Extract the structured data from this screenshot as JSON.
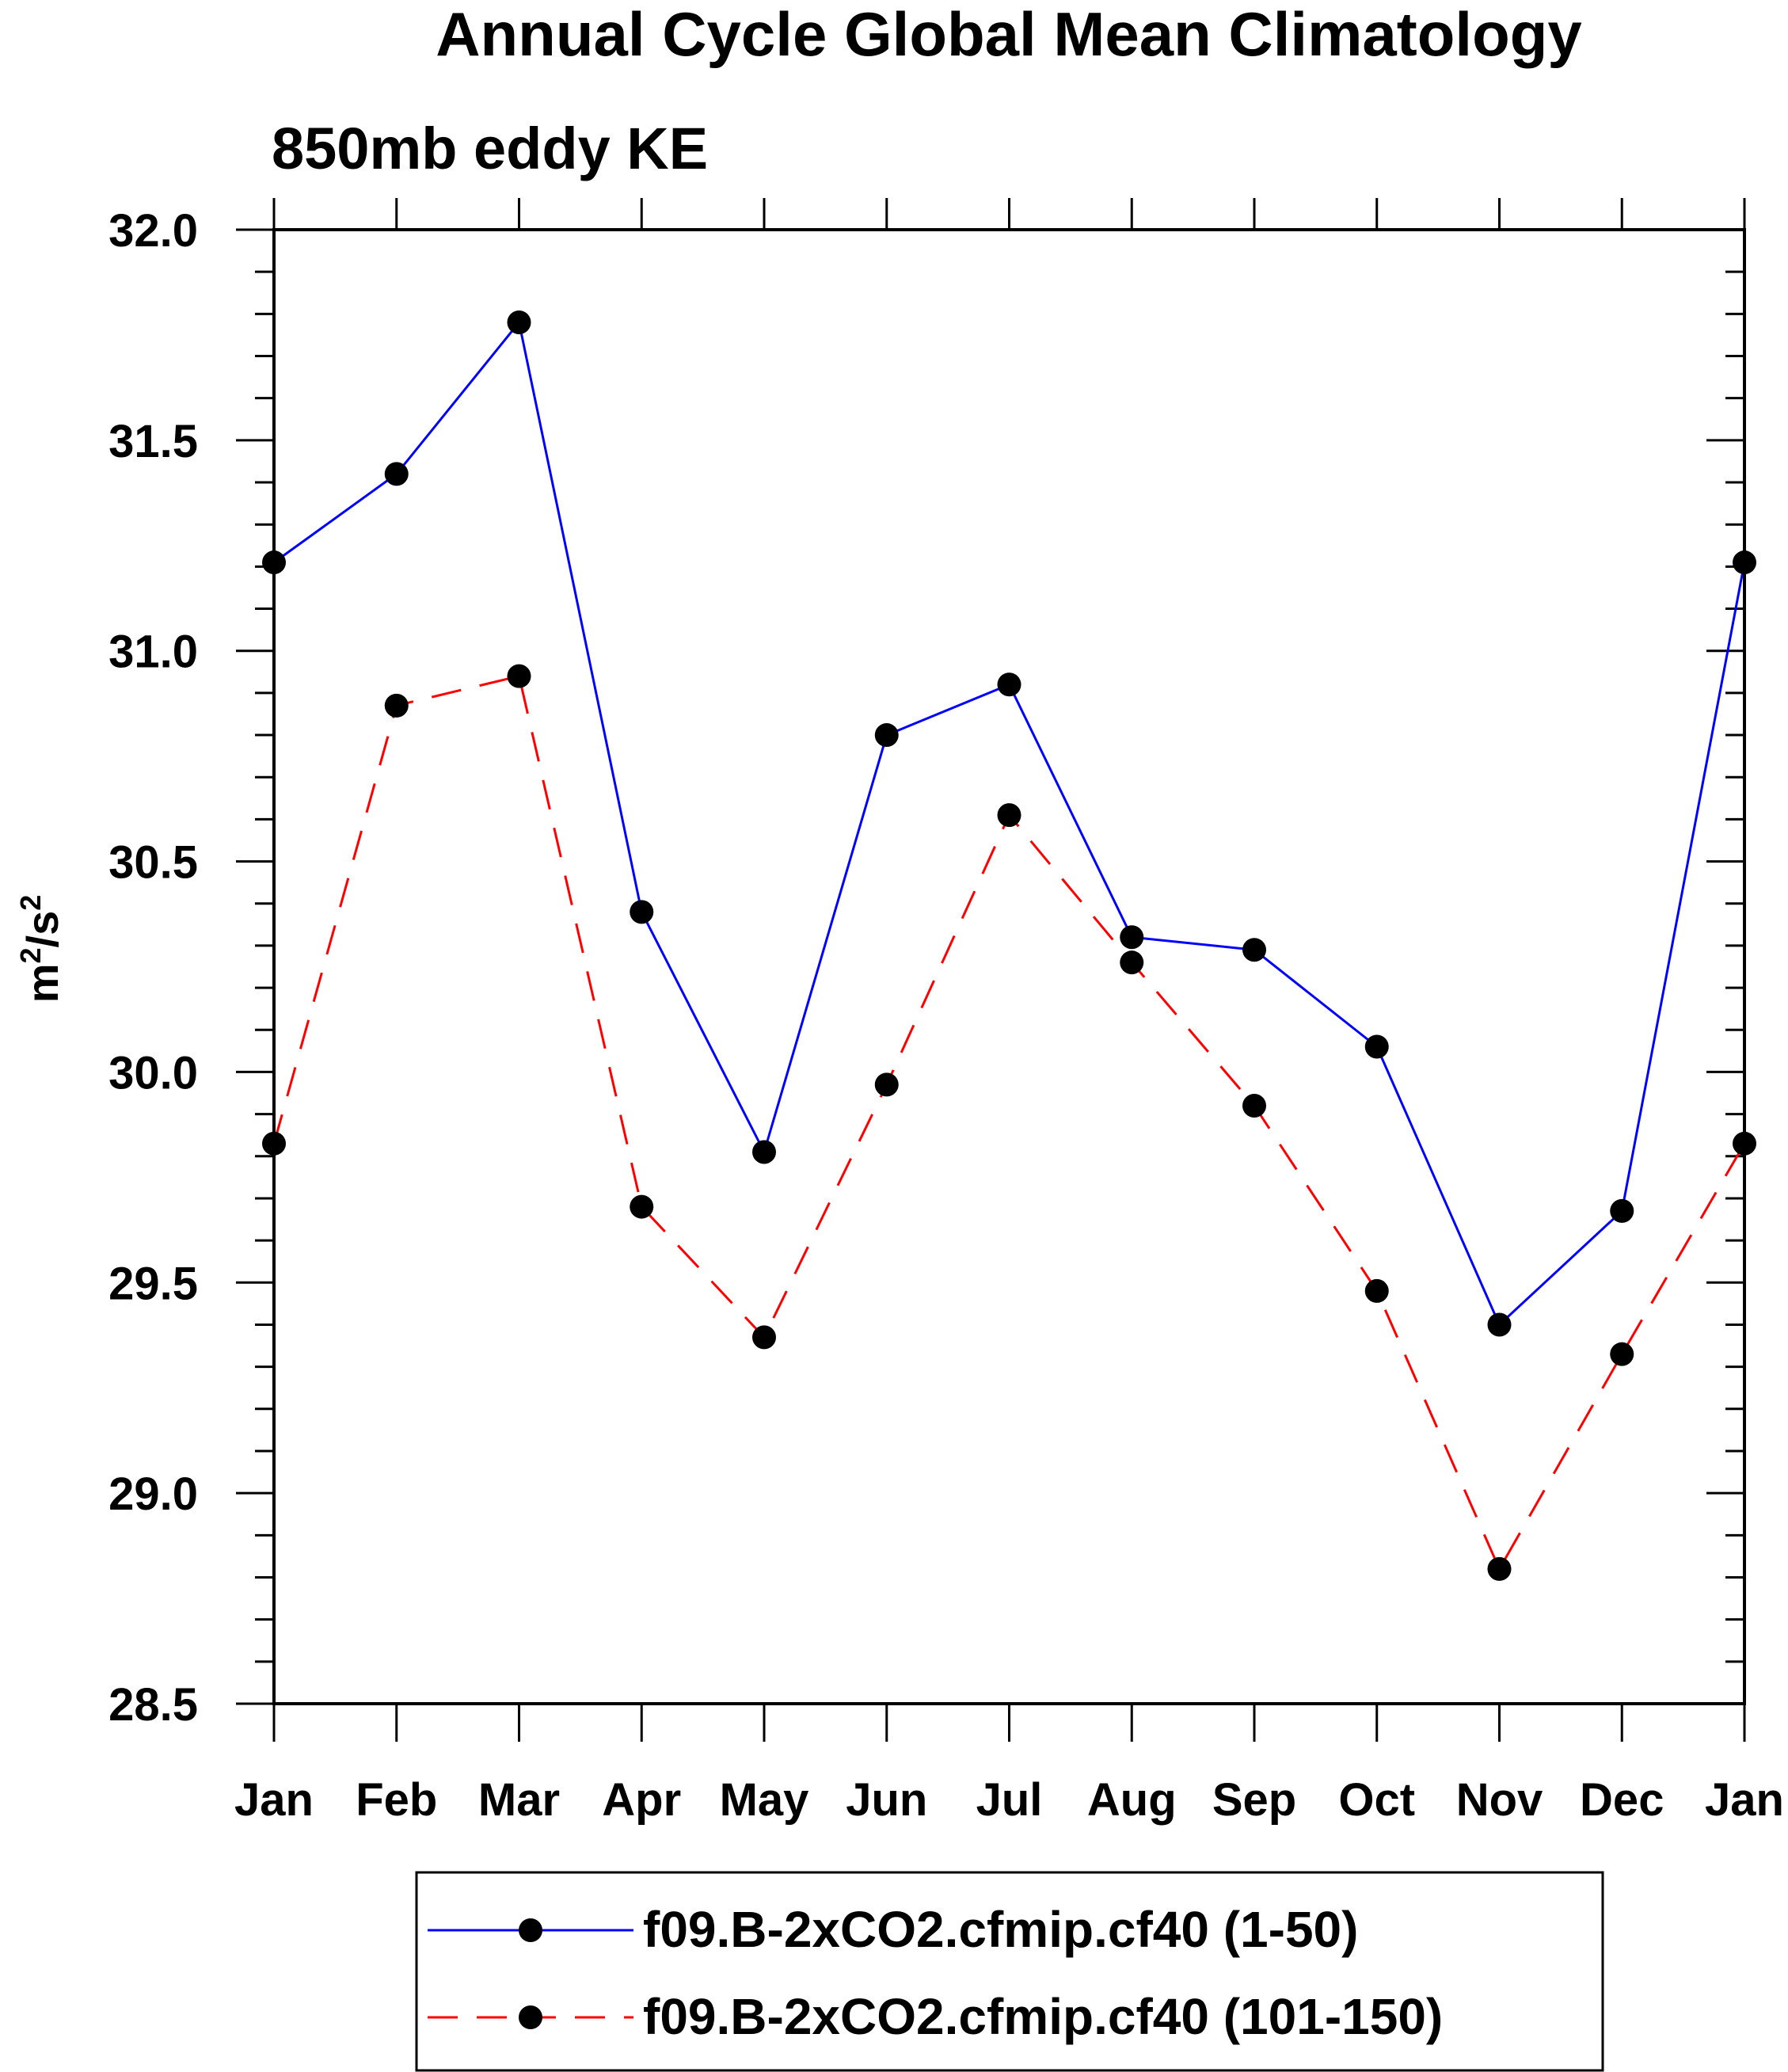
{
  "chart_data": {
    "type": "line",
    "title": "Annual Cycle Global Mean Climatology",
    "subtitle": "850mb eddy KE",
    "xlabel": "",
    "ylabel": "m²/s²",
    "ylabel_base": "m",
    "ylabel_exp": "2",
    "ylabel_sep": "/s",
    "ylabel_exp2": "2",
    "categories": [
      "Jan",
      "Feb",
      "Mar",
      "Apr",
      "May",
      "Jun",
      "Jul",
      "Aug",
      "Sep",
      "Oct",
      "Nov",
      "Dec",
      "Jan"
    ],
    "ylim": [
      28.5,
      32.0
    ],
    "yticks": [
      "28.5",
      "29.0",
      "29.5",
      "30.0",
      "30.5",
      "31.0",
      "31.5",
      "32.0"
    ],
    "grid": false,
    "legend_position": "bottom",
    "series": [
      {
        "name": "f09.B-2xCO2.cfmip.cf40 (1-50)",
        "color": "#0000ff",
        "dash": "solid",
        "marker": "filled-circle",
        "values": [
          31.21,
          31.42,
          31.78,
          30.38,
          29.81,
          30.8,
          30.92,
          30.32,
          30.29,
          30.06,
          29.4,
          29.67,
          31.21
        ]
      },
      {
        "name": "f09.B-2xCO2.cfmip.cf40 (101-150)",
        "color": "#ff0000",
        "dash": "dashed",
        "marker": "filled-circle",
        "values": [
          29.83,
          30.87,
          30.94,
          29.68,
          29.37,
          29.97,
          30.61,
          30.26,
          29.92,
          29.48,
          28.82,
          29.33,
          29.83
        ]
      }
    ]
  }
}
